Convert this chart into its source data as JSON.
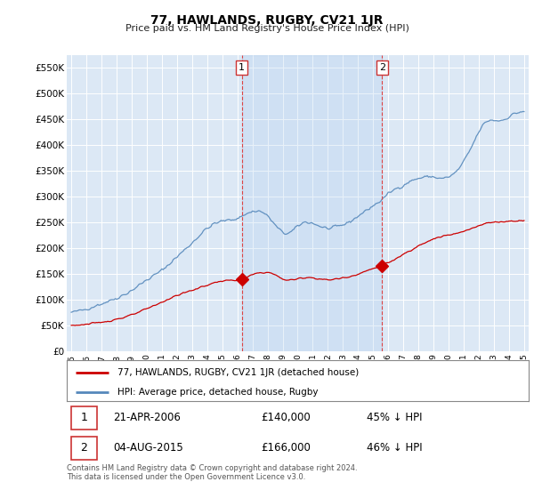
{
  "title": "77, HAWLANDS, RUGBY, CV21 1JR",
  "subtitle": "Price paid vs. HM Land Registry's House Price Index (HPI)",
  "legend_label_red": "77, HAWLANDS, RUGBY, CV21 1JR (detached house)",
  "legend_label_blue": "HPI: Average price, detached house, Rugby",
  "annotation1_date": "21-APR-2006",
  "annotation1_price": "£140,000",
  "annotation1_pct": "45% ↓ HPI",
  "annotation2_date": "04-AUG-2015",
  "annotation2_price": "£166,000",
  "annotation2_pct": "46% ↓ HPI",
  "footer": "Contains HM Land Registry data © Crown copyright and database right 2024.\nThis data is licensed under the Open Government Licence v3.0.",
  "vline1_x": 2006.3,
  "vline2_x": 2015.6,
  "sale1_y": 140000,
  "sale2_y": 166000,
  "ylim": [
    0,
    575000
  ],
  "xlim": [
    1994.7,
    2025.3
  ],
  "yticks": [
    0,
    50000,
    100000,
    150000,
    200000,
    250000,
    300000,
    350000,
    400000,
    450000,
    500000,
    550000
  ],
  "ytick_labels": [
    "£0",
    "£50K",
    "£100K",
    "£150K",
    "£200K",
    "£250K",
    "£300K",
    "£350K",
    "£400K",
    "£450K",
    "£500K",
    "£550K"
  ],
  "bg_color": "#dce8f5",
  "fill_color": "#dce8f5",
  "red_color": "#cc0000",
  "blue_color": "#5588bb",
  "vline_color": "#dd4444"
}
